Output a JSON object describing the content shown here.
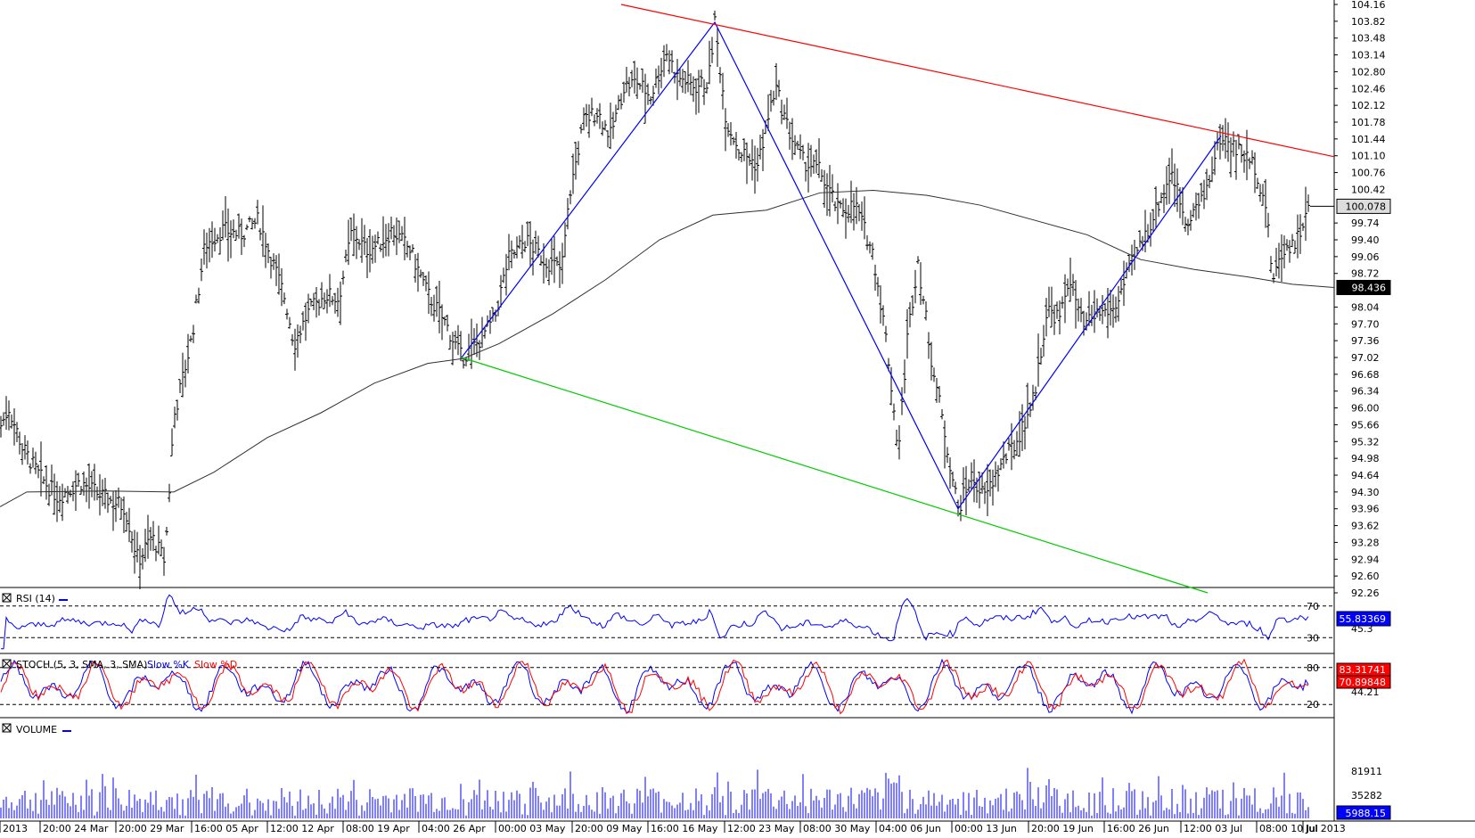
{
  "panels": {
    "rsi": {
      "label": "RSI (14)",
      "levels": [
        "70",
        "30"
      ],
      "scale_label": "45.3",
      "value_box": "55.83369"
    },
    "stoch": {
      "label_prefix": "STOCH (5, 3, SMA, 3, SMA)",
      "k_label": "Slow %K",
      "d_label": "Slow %D",
      "levels": [
        "80",
        "20"
      ],
      "scale_label": "44.21",
      "k_box": "83.31741",
      "d_box": "70.89848"
    },
    "volume": {
      "label": "VOLUME",
      "scale_labels": [
        "81911",
        "35282"
      ],
      "value_box": "5988.15"
    }
  },
  "price_axis": {
    "labels": [
      "104.16",
      "103.82",
      "103.48",
      "103.14",
      "102.80",
      "102.46",
      "102.12",
      "101.78",
      "101.44",
      "101.10",
      "100.76",
      "100.42",
      "99.74",
      "99.40",
      "99.06",
      "98.72",
      "98.04",
      "97.70",
      "97.36",
      "97.02",
      "96.68",
      "96.34",
      "96.00",
      "95.66",
      "95.32",
      "94.98",
      "94.64",
      "94.30",
      "93.96",
      "93.62",
      "93.28",
      "92.94",
      "92.60",
      "92.26"
    ],
    "last_price_box": "100.078",
    "ma_box": "98.436"
  },
  "time_axis": {
    "labels": [
      "2013",
      "20:00 24 Mar",
      "20:00 29 Mar",
      "16:00 05 Apr",
      "12:00 12 Apr",
      "08:00 19 Apr",
      "04:00 26 Apr",
      "00:00 03 May",
      "20:00 09 May",
      "16:00 16 May",
      "12:00 23 May",
      "08:00 30 May",
      "04:00 06 Jun",
      "00:00 13 Jun",
      "20:00 19 Jun",
      "16:00 26 Jun",
      "12:00 03 Jul",
      "08:00 10 Jul",
      "Jul 2013"
    ]
  },
  "colors": {
    "candle": "#000000",
    "ma": "#303030",
    "resistance": "#ff0000",
    "support": "#00cc00",
    "zigzag": "#0000ff",
    "rsi": "#0000ff",
    "stoch_k": "#0000ff",
    "stoch_d": "#ff0000",
    "volume": "#0000ff",
    "box_dark": "#000000",
    "box_blue": "#0000ff",
    "box_red": "#ff0000"
  },
  "chart_data": {
    "type": "line",
    "description_of_series": [
      "price",
      "moving_average",
      "zigzag",
      "trendlines"
    ],
    "ylim": [
      92.26,
      104.16
    ],
    "price_path": [
      [
        0,
        95.6
      ],
      [
        10,
        96.0
      ],
      [
        25,
        95.2
      ],
      [
        45,
        94.6
      ],
      [
        65,
        94.2
      ],
      [
        90,
        94.5
      ],
      [
        115,
        94.2
      ],
      [
        140,
        94.0
      ],
      [
        155,
        92.9
      ],
      [
        170,
        93.4
      ],
      [
        185,
        92.9
      ],
      [
        195,
        95.8
      ],
      [
        215,
        97.4
      ],
      [
        230,
        99.3
      ],
      [
        250,
        99.6
      ],
      [
        270,
        99.5
      ],
      [
        290,
        99.8
      ],
      [
        305,
        99.0
      ],
      [
        320,
        98.2
      ],
      [
        330,
        97.3
      ],
      [
        345,
        97.9
      ],
      [
        365,
        98.3
      ],
      [
        380,
        98.2
      ],
      [
        395,
        99.6
      ],
      [
        410,
        99.2
      ],
      [
        425,
        99.3
      ],
      [
        440,
        99.6
      ],
      [
        460,
        99.2
      ],
      [
        480,
        98.3
      ],
      [
        500,
        97.7
      ],
      [
        518,
        97.0
      ],
      [
        535,
        97.3
      ],
      [
        555,
        97.8
      ],
      [
        570,
        99.0
      ],
      [
        590,
        99.4
      ],
      [
        610,
        99.0
      ],
      [
        630,
        98.8
      ],
      [
        640,
        100.4
      ],
      [
        655,
        101.8
      ],
      [
        670,
        102.0
      ],
      [
        685,
        101.5
      ],
      [
        700,
        102.5
      ],
      [
        715,
        102.6
      ],
      [
        730,
        102.3
      ],
      [
        748,
        103.2
      ],
      [
        760,
        102.7
      ],
      [
        780,
        102.5
      ],
      [
        795,
        102.6
      ],
      [
        802,
        103.8
      ],
      [
        815,
        101.8
      ],
      [
        830,
        101.2
      ],
      [
        850,
        100.9
      ],
      [
        870,
        102.5
      ],
      [
        885,
        101.6
      ],
      [
        900,
        101.0
      ],
      [
        920,
        100.8
      ],
      [
        940,
        100.0
      ],
      [
        960,
        100.1
      ],
      [
        980,
        99.1
      ],
      [
        995,
        97.3
      ],
      [
        1008,
        95.1
      ],
      [
        1018,
        97.4
      ],
      [
        1030,
        99.0
      ],
      [
        1045,
        97.0
      ],
      [
        1060,
        95.5
      ],
      [
        1075,
        93.96
      ],
      [
        1090,
        94.6
      ],
      [
        1105,
        94.2
      ],
      [
        1125,
        94.9
      ],
      [
        1140,
        95.3
      ],
      [
        1160,
        96.2
      ],
      [
        1175,
        98.0
      ],
      [
        1190,
        97.8
      ],
      [
        1200,
        98.7
      ],
      [
        1215,
        97.6
      ],
      [
        1230,
        97.9
      ],
      [
        1250,
        98.0
      ],
      [
        1270,
        98.9
      ],
      [
        1290,
        99.7
      ],
      [
        1315,
        100.8
      ],
      [
        1330,
        99.8
      ],
      [
        1350,
        100.2
      ],
      [
        1370,
        101.5
      ],
      [
        1390,
        101.2
      ],
      [
        1408,
        100.9
      ],
      [
        1420,
        100.1
      ],
      [
        1428,
        98.6
      ],
      [
        1440,
        99.2
      ],
      [
        1455,
        99.4
      ],
      [
        1470,
        100.078
      ]
    ],
    "ma_path": [
      [
        0,
        94.0
      ],
      [
        30,
        94.3
      ],
      [
        120,
        94.32
      ],
      [
        195,
        94.3
      ],
      [
        240,
        94.7
      ],
      [
        300,
        95.4
      ],
      [
        360,
        95.9
      ],
      [
        420,
        96.5
      ],
      [
        480,
        96.9
      ],
      [
        520,
        97.0
      ],
      [
        560,
        97.3
      ],
      [
        620,
        97.9
      ],
      [
        680,
        98.6
      ],
      [
        740,
        99.4
      ],
      [
        800,
        99.9
      ],
      [
        860,
        100.0
      ],
      [
        920,
        100.35
      ],
      [
        980,
        100.4
      ],
      [
        1040,
        100.3
      ],
      [
        1100,
        100.1
      ],
      [
        1160,
        99.8
      ],
      [
        1220,
        99.5
      ],
      [
        1280,
        99.0
      ],
      [
        1340,
        98.8
      ],
      [
        1400,
        98.65
      ],
      [
        1450,
        98.5
      ],
      [
        1497,
        98.436
      ]
    ],
    "zigzag_path": [
      [
        518,
        97.02
      ],
      [
        802,
        103.8
      ],
      [
        1075,
        93.96
      ],
      [
        1370,
        101.5
      ]
    ],
    "resistance_line": [
      [
        697,
        104.16
      ],
      [
        1497,
        101.08
      ]
    ],
    "support_line": [
      [
        518,
        97.02
      ],
      [
        1355,
        92.26
      ]
    ]
  }
}
